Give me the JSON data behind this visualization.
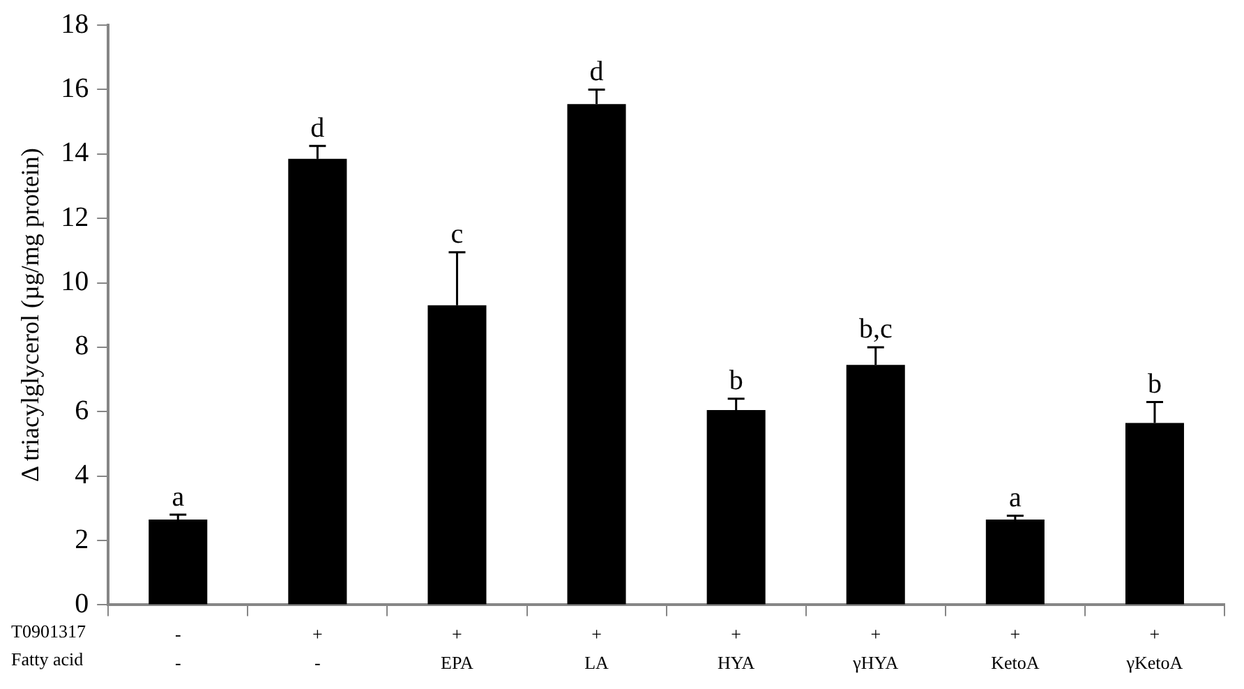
{
  "chart_data": {
    "type": "bar",
    "ylabel": "Δ triacylglycerol (µg/mg protein)",
    "categories": [
      "-\n-",
      "+\n-",
      "+\nEPA",
      "+\nLA",
      "+\nHYA",
      "+\nγHYA",
      "+\nKetoA",
      "+\nγKetoA"
    ],
    "values": [
      2.65,
      13.85,
      9.3,
      15.55,
      6.05,
      7.45,
      2.65,
      5.65
    ],
    "errors": [
      [
        2.65,
        2.8
      ],
      [
        13.85,
        14.25
      ],
      [
        9.3,
        10.95
      ],
      [
        15.55,
        16
      ],
      [
        6.05,
        6.4
      ],
      [
        7.45,
        8
      ],
      [
        2.65,
        2.77
      ],
      [
        5.65,
        6.3
      ]
    ],
    "color": "#000000",
    "ylim": [
      0,
      18
    ],
    "yticks": [
      0,
      2,
      4,
      6,
      8,
      10,
      12,
      14,
      16,
      18
    ],
    "grid": false,
    "legend": false,
    "annotations": [
      {
        "text": "a",
        "x": "-\n-",
        "y": 2.65
      },
      {
        "text": "d",
        "x": "+\n-",
        "y": 13.85
      },
      {
        "text": "c",
        "x": "+\nEPA",
        "y": 9.3
      },
      {
        "text": "d",
        "x": "+\nLA",
        "y": 15.55
      },
      {
        "text": "b",
        "x": "+\nHYA",
        "y": 6.05
      },
      {
        "text": "b,c",
        "x": "+\nγHYA",
        "y": 7.45
      },
      {
        "text": "a",
        "x": "+\nKetoA",
        "y": 2.65
      },
      {
        "text": "b",
        "x": "+\nγKetoA",
        "y": 5.65
      },
      "T0901317\nFatty acid"
    ]
  }
}
